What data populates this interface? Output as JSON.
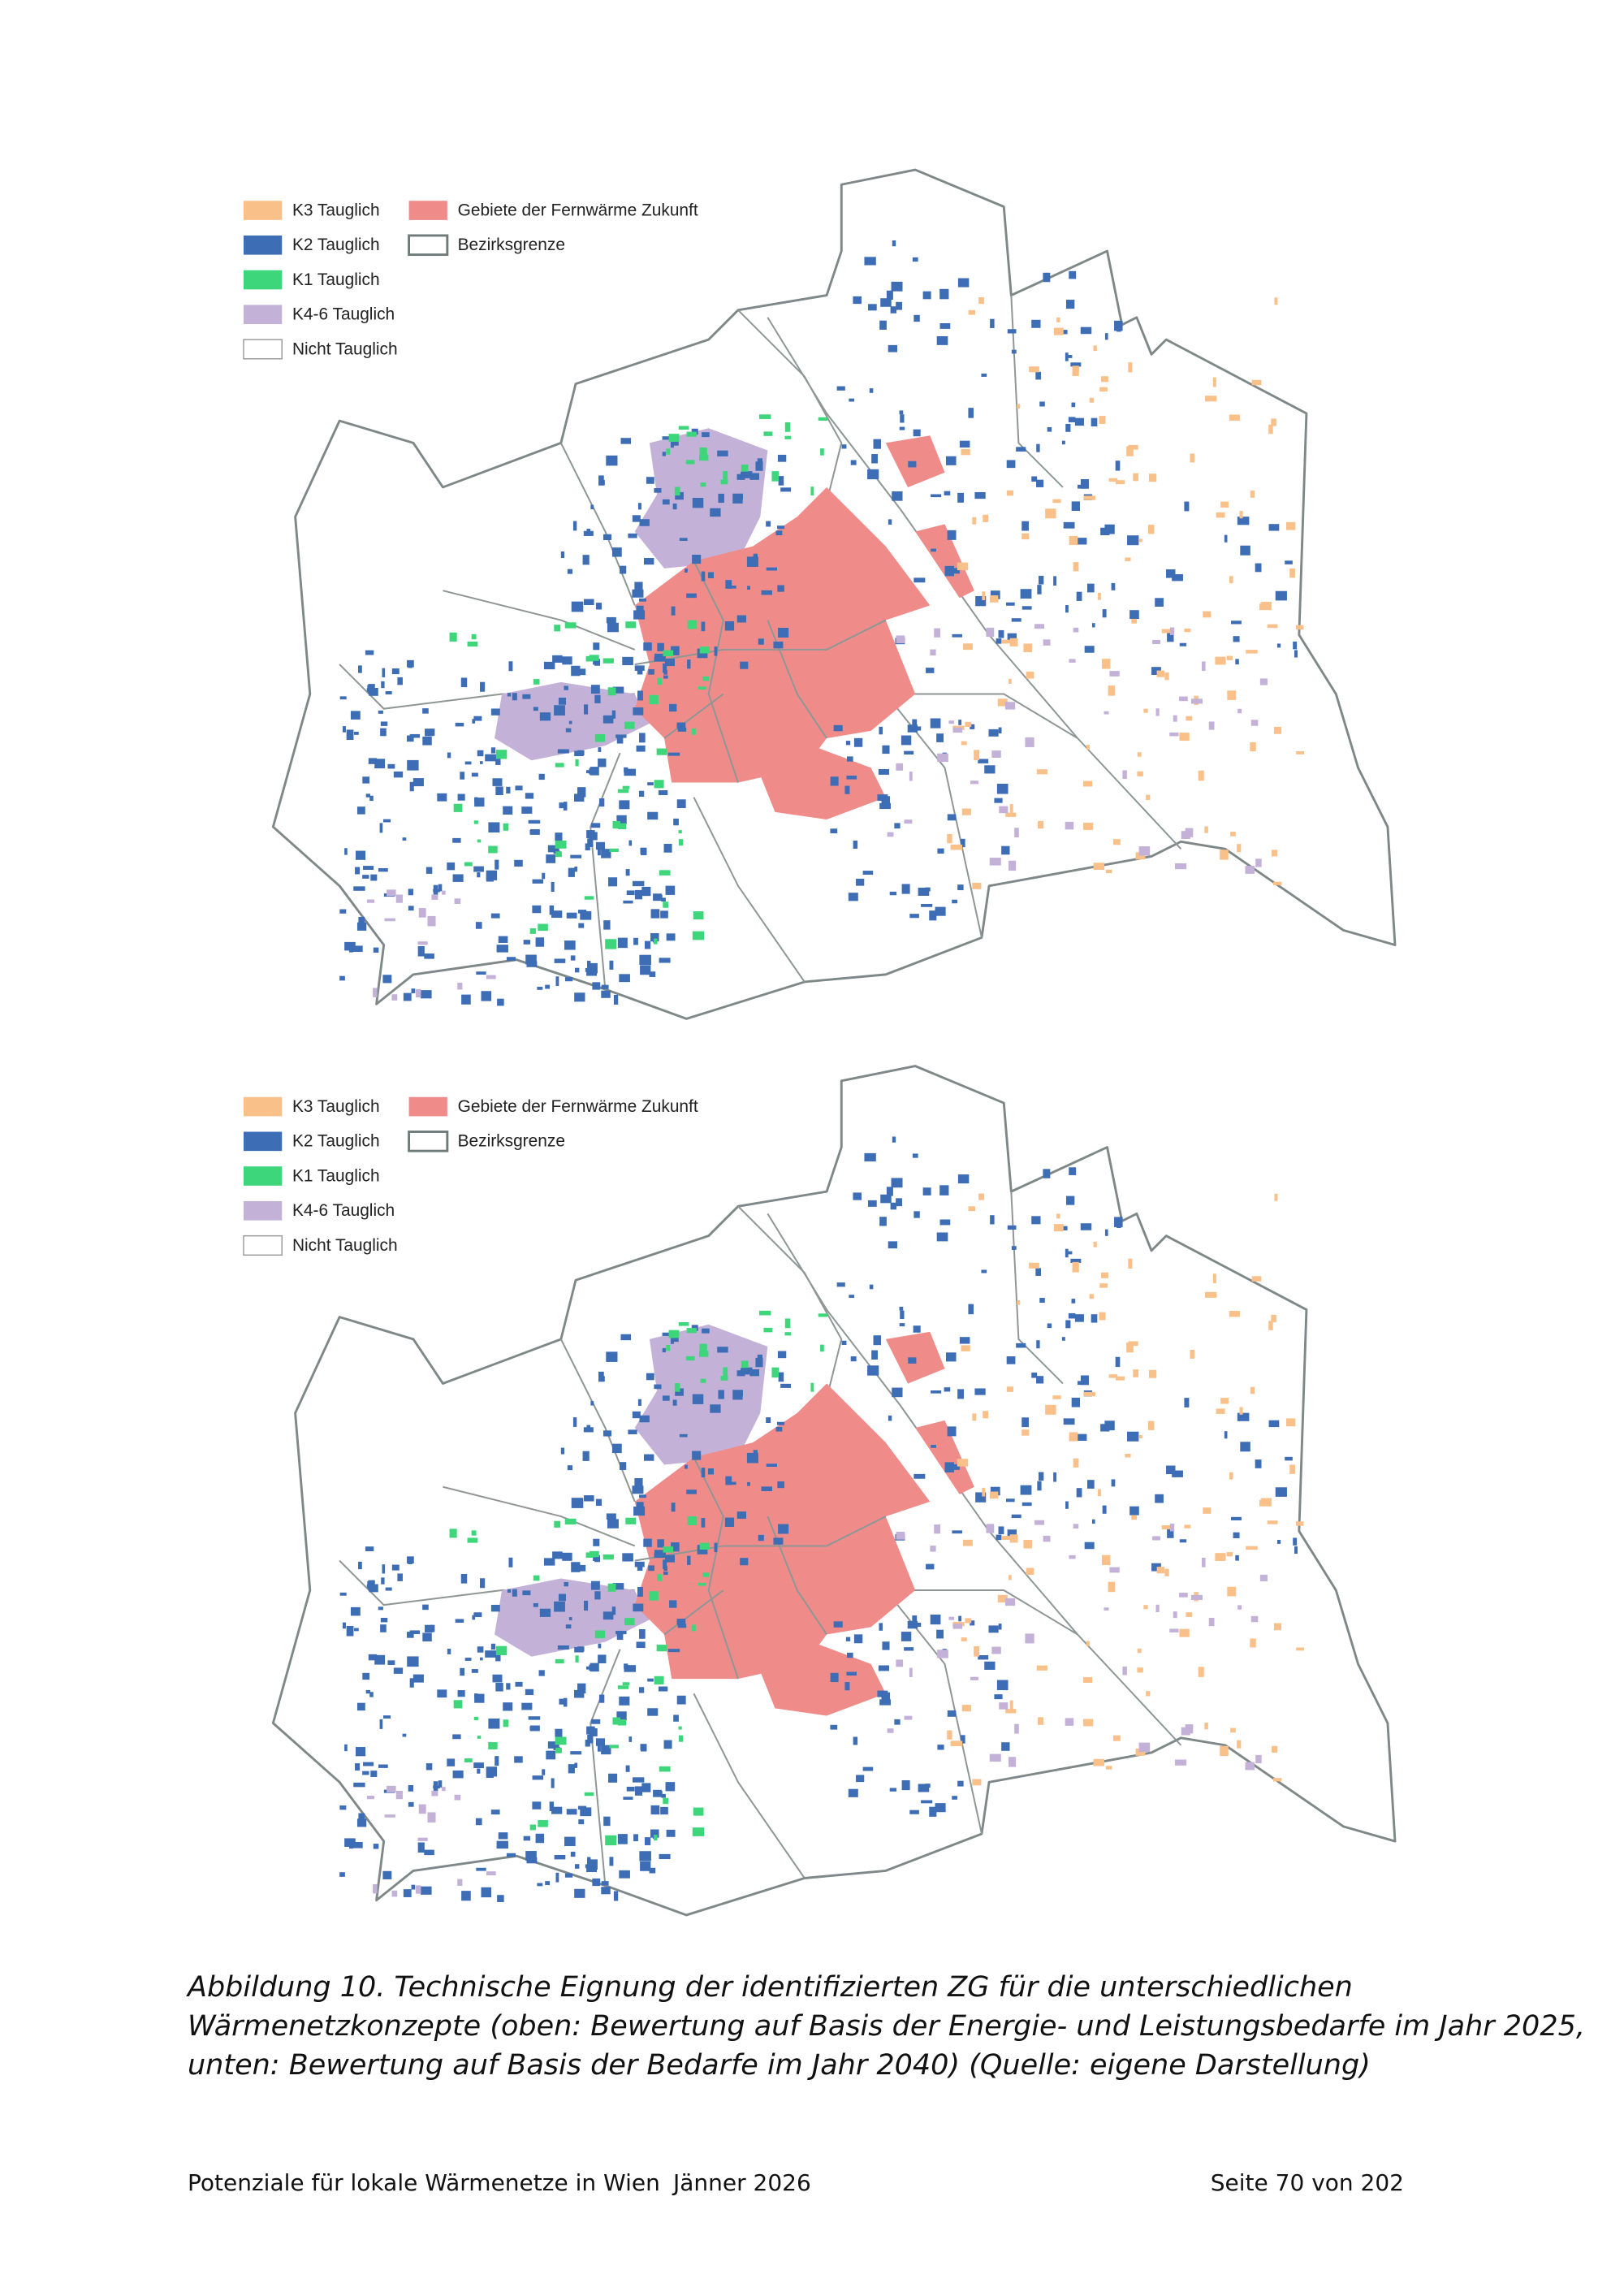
{
  "figures": [
    {
      "legend": [
        {
          "label": "K3 Tauglich",
          "color": "#f9c08a"
        },
        {
          "label": "K2 Tauglich",
          "color": "#3d6db5"
        },
        {
          "label": "K1 Tauglich",
          "color": "#3ed67a"
        },
        {
          "label": "K4-6 Tauglich",
          "color": "#c3b1d8"
        },
        {
          "label": "Nicht Tauglich",
          "color": "#ffffff"
        },
        {
          "label": "Gebiete der Fernwärme Zukunft",
          "color": "#ef8c8a"
        },
        {
          "label": "Bezirksgrenze",
          "color": "#ffffff"
        }
      ]
    },
    {
      "legend": [
        {
          "label": "K3 Tauglich",
          "color": "#f9c08a"
        },
        {
          "label": "K2 Tauglich",
          "color": "#3d6db5"
        },
        {
          "label": "K1 Tauglich",
          "color": "#3ed67a"
        },
        {
          "label": "K4-6 Tauglich",
          "color": "#c3b1d8"
        },
        {
          "label": "Nicht Tauglich",
          "color": "#ffffff"
        },
        {
          "label": "Gebiete der Fernwärme Zukunft",
          "color": "#ef8c8a"
        },
        {
          "label": "Bezirksgrenze",
          "color": "#ffffff"
        }
      ]
    }
  ],
  "caption": [
    "Abbildung 10. Technische Eignung der identifizierten ZG für die unterschiedlichen",
    "Wärmenetzkonzepte (oben: Bewertung auf Basis der Energie- und Leistungsbedarfe im Jahr 2025,",
    "unten: Bewertung auf Basis der Bedarfe im Jahr 2040) (Quelle: eigene Darstellung)"
  ],
  "footer": {
    "title": "Potenziale für lokale Wärmenetze in Wien",
    "date": "Jänner 2026",
    "page": "Seite 70 von 202"
  }
}
